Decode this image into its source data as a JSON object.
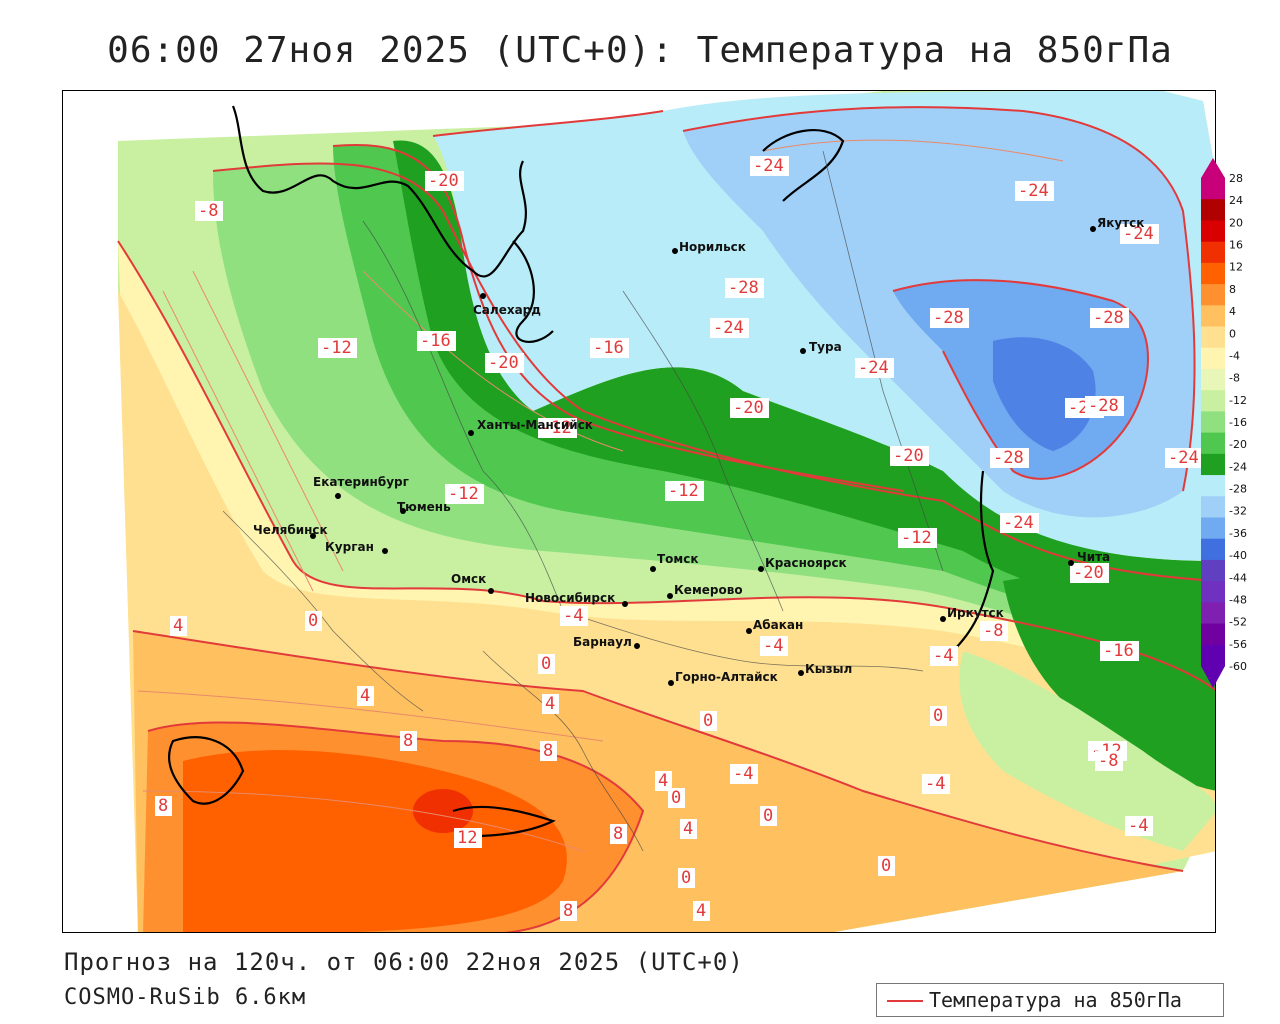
{
  "title": "06:00 27ноя 2025 (UTC+0): Температура на 850гПа",
  "footer": {
    "forecast": "Прогноз на 120ч. от 06:00 22ноя 2025 (UTC+0)",
    "model": "COSMO-RuSib 6.6км"
  },
  "legend": {
    "line_label": "Температура на 850гПа",
    "line_color": "#e23a3a"
  },
  "colorbar": {
    "ticks": [
      "28",
      "24",
      "20",
      "16",
      "12",
      "8",
      "4",
      "0",
      "-4",
      "-8",
      "-12",
      "-16",
      "-20",
      "-24",
      "-28",
      "-32",
      "-36",
      "-40",
      "-44",
      "-48",
      "-52",
      "-56",
      "-60"
    ],
    "colors": [
      "#c8007a",
      "#b00000",
      "#d80000",
      "#f03000",
      "#ff6000",
      "#ff9030",
      "#ffc060",
      "#ffe090",
      "#fff4b0",
      "#e8f7b8",
      "#c8f0a0",
      "#90e080",
      "#50c850",
      "#20a020",
      "#b8ecf8",
      "#a0d0f8",
      "#70aaf0",
      "#4070e0",
      "#6040c0",
      "#7030c0",
      "#8020b0",
      "#7000a0",
      "#6000b0"
    ]
  },
  "cities": [
    {
      "name": "Норильск"
    },
    {
      "name": "Якутск"
    },
    {
      "name": "Салехард"
    },
    {
      "name": "Тура"
    },
    {
      "name": "Ханты-Мансийск"
    },
    {
      "name": "Екатеринбург"
    },
    {
      "name": "Тюмень"
    },
    {
      "name": "Челябинск"
    },
    {
      "name": "Курган"
    },
    {
      "name": "Омск"
    },
    {
      "name": "Новосибирск"
    },
    {
      "name": "Томск"
    },
    {
      "name": "Кемерово"
    },
    {
      "name": "Красноярск"
    },
    {
      "name": "Барнаул"
    },
    {
      "name": "Абакан"
    },
    {
      "name": "Горно-Алтайск"
    },
    {
      "name": "Кызыл"
    },
    {
      "name": "Иркутск"
    },
    {
      "name": "Чита"
    }
  ],
  "contour_labels": [
    "-8",
    "-20",
    "-24",
    "-24",
    "-24",
    "-28",
    "-24",
    "-28",
    "-28",
    "-12",
    "-16",
    "-20",
    "-16",
    "-24",
    "-24",
    "-20",
    "-12",
    "-12",
    "-12",
    "-20",
    "-28",
    "-28",
    "-24",
    "-24",
    "-12",
    "-20",
    "-8",
    "-16",
    "4",
    "0",
    "0",
    "-4",
    "-4",
    "4",
    "-4",
    "4",
    "0",
    "0",
    "8",
    "8",
    "4",
    "0",
    "-4",
    "-12",
    "-8",
    "-4",
    "8",
    "12",
    "8",
    "4",
    "0",
    "0",
    "0",
    "-4",
    "8",
    "4"
  ]
}
